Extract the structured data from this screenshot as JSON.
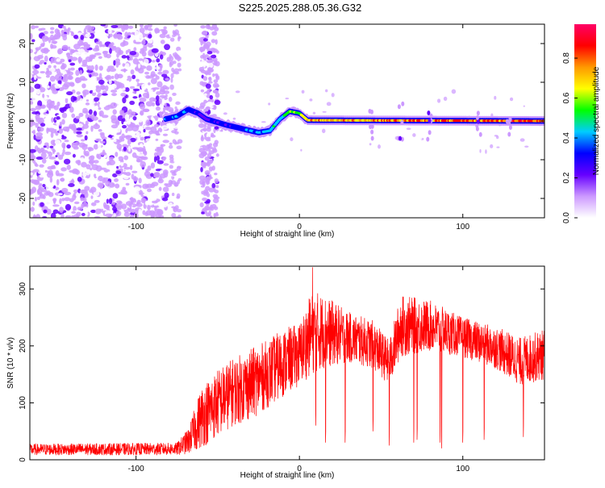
{
  "title": "S225.2025.288.05.36.G32",
  "chart_data": [
    {
      "type": "heatmap",
      "xlabel": "Height of straight line (km)",
      "ylabel": "Frequency (Hz)",
      "xlim": [
        -165,
        150
      ],
      "ylim": [
        -25,
        25
      ],
      "xticks": [
        -100,
        0,
        100
      ],
      "yticks": [
        -20,
        -10,
        0,
        10,
        20
      ],
      "colorbar": {
        "label": "Normalized spectral amplitude",
        "range": [
          0,
          0.97
        ],
        "ticks": [
          0.0,
          0.2,
          0.4,
          0.6,
          0.8
        ],
        "colormap": [
          "#ffffff",
          "#cc99ff",
          "#6600ff",
          "#0000ff",
          "#00ccff",
          "#00ff00",
          "#ffff00",
          "#ff9900",
          "#ff0000",
          "#ff0066"
        ]
      },
      "noise_region_x": [
        -165,
        -80
      ],
      "band_track": [
        {
          "x": -82,
          "f": 0.5,
          "a": 0.35
        },
        {
          "x": -75,
          "f": 1.2,
          "a": 0.4
        },
        {
          "x": -68,
          "f": 3.0,
          "a": 0.35
        },
        {
          "x": -62,
          "f": 2.0,
          "a": 0.3
        },
        {
          "x": -57,
          "f": 0.5,
          "a": 0.25
        },
        {
          "x": -45,
          "f": -1.0,
          "a": 0.3
        },
        {
          "x": -35,
          "f": -2.0,
          "a": 0.35
        },
        {
          "x": -25,
          "f": -3.0,
          "a": 0.4
        },
        {
          "x": -18,
          "f": -2.5,
          "a": 0.45
        },
        {
          "x": -12,
          "f": 0.5,
          "a": 0.5
        },
        {
          "x": -6,
          "f": 2.5,
          "a": 0.6
        },
        {
          "x": 0,
          "f": 2.0,
          "a": 0.55
        },
        {
          "x": 5,
          "f": 0.2,
          "a": 0.7
        },
        {
          "x": 150,
          "f": 0.0,
          "a": 0.8
        }
      ]
    },
    {
      "type": "line",
      "xlabel": "Height of straight line (km)",
      "ylabel": "SNR (10 * v/v)",
      "xlim": [
        -165,
        150
      ],
      "ylim": [
        0,
        340
      ],
      "xticks": [
        -100,
        0,
        100
      ],
      "yticks": [
        0,
        100,
        200,
        300
      ],
      "series": [
        {
          "color": "#ff0000",
          "envelope": [
            {
              "x": -165,
              "lo": 8,
              "hi": 28
            },
            {
              "x": -75,
              "lo": 8,
              "hi": 30
            },
            {
              "x": -68,
              "lo": 10,
              "hi": 55
            },
            {
              "x": -60,
              "lo": 20,
              "hi": 130
            },
            {
              "x": -50,
              "lo": 40,
              "hi": 160
            },
            {
              "x": -40,
              "lo": 60,
              "hi": 180
            },
            {
              "x": -30,
              "lo": 70,
              "hi": 195
            },
            {
              "x": -20,
              "lo": 90,
              "hi": 210
            },
            {
              "x": -10,
              "lo": 110,
              "hi": 230
            },
            {
              "x": 0,
              "lo": 130,
              "hi": 240
            },
            {
              "x": 8,
              "lo": 150,
              "hi": 300
            },
            {
              "x": 15,
              "lo": 160,
              "hi": 290
            },
            {
              "x": 30,
              "lo": 170,
              "hi": 260
            },
            {
              "x": 45,
              "lo": 160,
              "hi": 245
            },
            {
              "x": 55,
              "lo": 130,
              "hi": 210
            },
            {
              "x": 62,
              "lo": 180,
              "hi": 290
            },
            {
              "x": 80,
              "lo": 190,
              "hi": 280
            },
            {
              "x": 100,
              "lo": 180,
              "hi": 250
            },
            {
              "x": 120,
              "lo": 160,
              "hi": 235
            },
            {
              "x": 135,
              "lo": 130,
              "hi": 215
            },
            {
              "x": 150,
              "lo": 140,
              "hi": 230
            }
          ],
          "dropouts": [
            {
              "x": 10,
              "y": 60
            },
            {
              "x": 16,
              "y": 30
            },
            {
              "x": 28,
              "y": 30
            },
            {
              "x": 45,
              "y": 50
            },
            {
              "x": 55,
              "y": 25
            },
            {
              "x": 70,
              "y": 30
            },
            {
              "x": 72,
              "y": 35
            },
            {
              "x": 86,
              "y": 30
            },
            {
              "x": 87,
              "y": 20
            },
            {
              "x": 100,
              "y": 30
            },
            {
              "x": 113,
              "y": 35
            },
            {
              "x": 137,
              "y": 40
            }
          ]
        }
      ]
    }
  ]
}
